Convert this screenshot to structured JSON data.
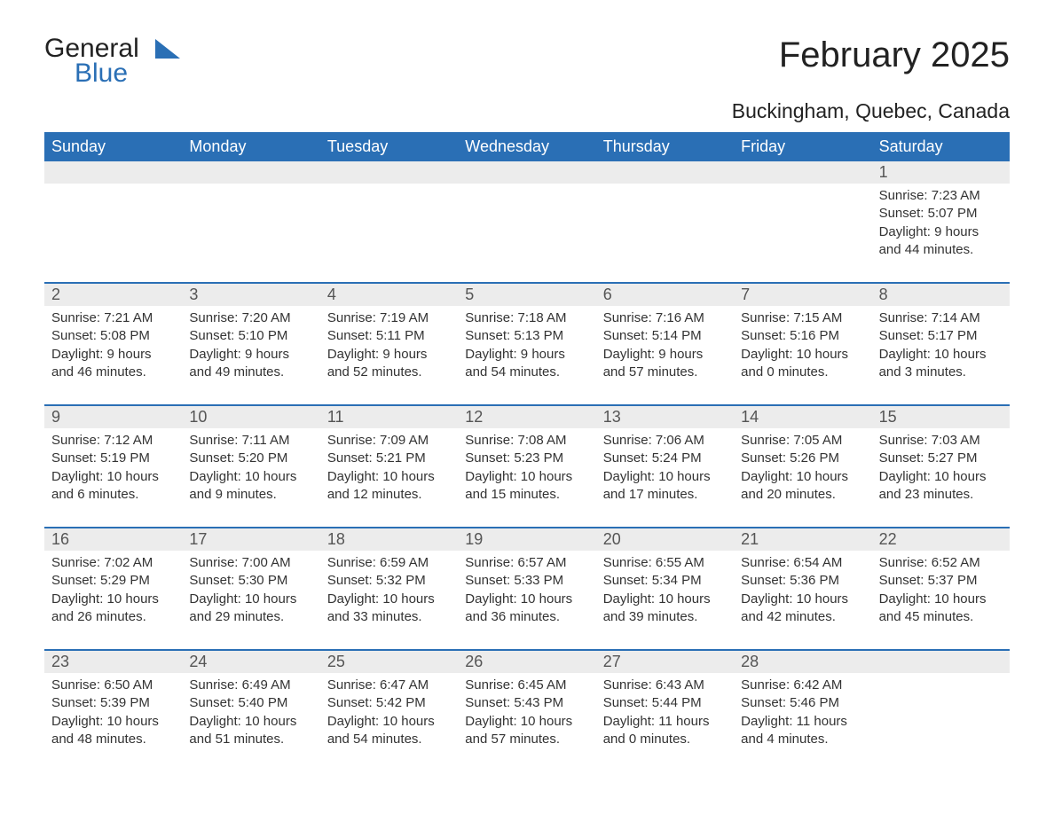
{
  "logo": {
    "word1": "General",
    "word2": "Blue"
  },
  "title": "February 2025",
  "location": "Buckingham, Quebec, Canada",
  "colors": {
    "header_bg": "#2a6fb5",
    "header_text": "#ffffff",
    "daynum_bg": "#ececec",
    "text": "#333333",
    "rule": "#2a6fb5",
    "logo_blue": "#2a6fb5"
  },
  "weekdays": [
    "Sunday",
    "Monday",
    "Tuesday",
    "Wednesday",
    "Thursday",
    "Friday",
    "Saturday"
  ],
  "weeks": [
    [
      null,
      null,
      null,
      null,
      null,
      null,
      {
        "n": "1",
        "sunrise": "Sunrise: 7:23 AM",
        "sunset": "Sunset: 5:07 PM",
        "daylight": "Daylight: 9 hours and 44 minutes."
      }
    ],
    [
      {
        "n": "2",
        "sunrise": "Sunrise: 7:21 AM",
        "sunset": "Sunset: 5:08 PM",
        "daylight": "Daylight: 9 hours and 46 minutes."
      },
      {
        "n": "3",
        "sunrise": "Sunrise: 7:20 AM",
        "sunset": "Sunset: 5:10 PM",
        "daylight": "Daylight: 9 hours and 49 minutes."
      },
      {
        "n": "4",
        "sunrise": "Sunrise: 7:19 AM",
        "sunset": "Sunset: 5:11 PM",
        "daylight": "Daylight: 9 hours and 52 minutes."
      },
      {
        "n": "5",
        "sunrise": "Sunrise: 7:18 AM",
        "sunset": "Sunset: 5:13 PM",
        "daylight": "Daylight: 9 hours and 54 minutes."
      },
      {
        "n": "6",
        "sunrise": "Sunrise: 7:16 AM",
        "sunset": "Sunset: 5:14 PM",
        "daylight": "Daylight: 9 hours and 57 minutes."
      },
      {
        "n": "7",
        "sunrise": "Sunrise: 7:15 AM",
        "sunset": "Sunset: 5:16 PM",
        "daylight": "Daylight: 10 hours and 0 minutes."
      },
      {
        "n": "8",
        "sunrise": "Sunrise: 7:14 AM",
        "sunset": "Sunset: 5:17 PM",
        "daylight": "Daylight: 10 hours and 3 minutes."
      }
    ],
    [
      {
        "n": "9",
        "sunrise": "Sunrise: 7:12 AM",
        "sunset": "Sunset: 5:19 PM",
        "daylight": "Daylight: 10 hours and 6 minutes."
      },
      {
        "n": "10",
        "sunrise": "Sunrise: 7:11 AM",
        "sunset": "Sunset: 5:20 PM",
        "daylight": "Daylight: 10 hours and 9 minutes."
      },
      {
        "n": "11",
        "sunrise": "Sunrise: 7:09 AM",
        "sunset": "Sunset: 5:21 PM",
        "daylight": "Daylight: 10 hours and 12 minutes."
      },
      {
        "n": "12",
        "sunrise": "Sunrise: 7:08 AM",
        "sunset": "Sunset: 5:23 PM",
        "daylight": "Daylight: 10 hours and 15 minutes."
      },
      {
        "n": "13",
        "sunrise": "Sunrise: 7:06 AM",
        "sunset": "Sunset: 5:24 PM",
        "daylight": "Daylight: 10 hours and 17 minutes."
      },
      {
        "n": "14",
        "sunrise": "Sunrise: 7:05 AM",
        "sunset": "Sunset: 5:26 PM",
        "daylight": "Daylight: 10 hours and 20 minutes."
      },
      {
        "n": "15",
        "sunrise": "Sunrise: 7:03 AM",
        "sunset": "Sunset: 5:27 PM",
        "daylight": "Daylight: 10 hours and 23 minutes."
      }
    ],
    [
      {
        "n": "16",
        "sunrise": "Sunrise: 7:02 AM",
        "sunset": "Sunset: 5:29 PM",
        "daylight": "Daylight: 10 hours and 26 minutes."
      },
      {
        "n": "17",
        "sunrise": "Sunrise: 7:00 AM",
        "sunset": "Sunset: 5:30 PM",
        "daylight": "Daylight: 10 hours and 29 minutes."
      },
      {
        "n": "18",
        "sunrise": "Sunrise: 6:59 AM",
        "sunset": "Sunset: 5:32 PM",
        "daylight": "Daylight: 10 hours and 33 minutes."
      },
      {
        "n": "19",
        "sunrise": "Sunrise: 6:57 AM",
        "sunset": "Sunset: 5:33 PM",
        "daylight": "Daylight: 10 hours and 36 minutes."
      },
      {
        "n": "20",
        "sunrise": "Sunrise: 6:55 AM",
        "sunset": "Sunset: 5:34 PM",
        "daylight": "Daylight: 10 hours and 39 minutes."
      },
      {
        "n": "21",
        "sunrise": "Sunrise: 6:54 AM",
        "sunset": "Sunset: 5:36 PM",
        "daylight": "Daylight: 10 hours and 42 minutes."
      },
      {
        "n": "22",
        "sunrise": "Sunrise: 6:52 AM",
        "sunset": "Sunset: 5:37 PM",
        "daylight": "Daylight: 10 hours and 45 minutes."
      }
    ],
    [
      {
        "n": "23",
        "sunrise": "Sunrise: 6:50 AM",
        "sunset": "Sunset: 5:39 PM",
        "daylight": "Daylight: 10 hours and 48 minutes."
      },
      {
        "n": "24",
        "sunrise": "Sunrise: 6:49 AM",
        "sunset": "Sunset: 5:40 PM",
        "daylight": "Daylight: 10 hours and 51 minutes."
      },
      {
        "n": "25",
        "sunrise": "Sunrise: 6:47 AM",
        "sunset": "Sunset: 5:42 PM",
        "daylight": "Daylight: 10 hours and 54 minutes."
      },
      {
        "n": "26",
        "sunrise": "Sunrise: 6:45 AM",
        "sunset": "Sunset: 5:43 PM",
        "daylight": "Daylight: 10 hours and 57 minutes."
      },
      {
        "n": "27",
        "sunrise": "Sunrise: 6:43 AM",
        "sunset": "Sunset: 5:44 PM",
        "daylight": "Daylight: 11 hours and 0 minutes."
      },
      {
        "n": "28",
        "sunrise": "Sunrise: 6:42 AM",
        "sunset": "Sunset: 5:46 PM",
        "daylight": "Daylight: 11 hours and 4 minutes."
      },
      null
    ]
  ]
}
